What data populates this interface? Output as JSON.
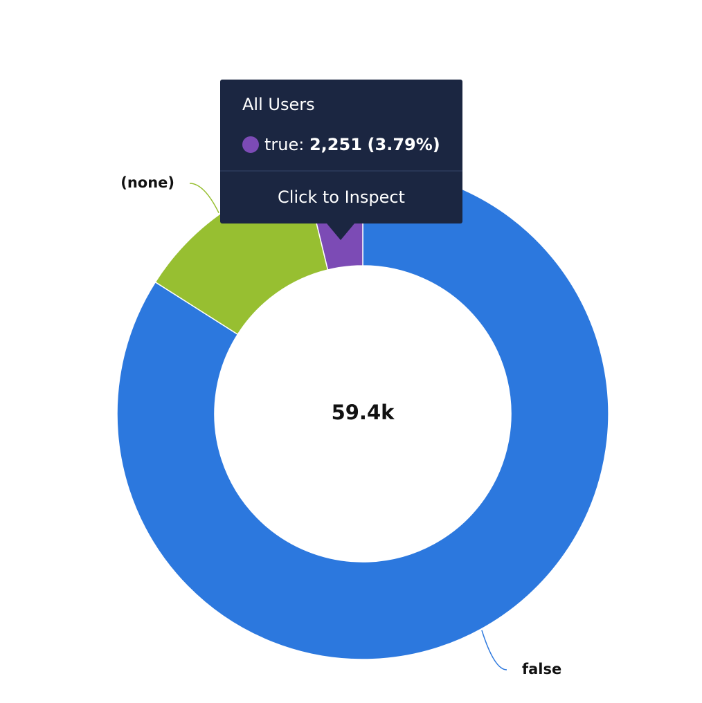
{
  "chart_data": {
    "type": "donut",
    "center_label": "59.4k",
    "categories": [
      "false",
      "(none)",
      "true"
    ],
    "values": [
      49900,
      7250,
      2251
    ],
    "colors": [
      "#2c78de",
      "#97bf31",
      "#7c4bb5"
    ],
    "tooltip": {
      "title": "All Users",
      "label": "true:",
      "value": "2,251",
      "percent": "(3.79%)",
      "action": "Click to Inspect"
    }
  }
}
